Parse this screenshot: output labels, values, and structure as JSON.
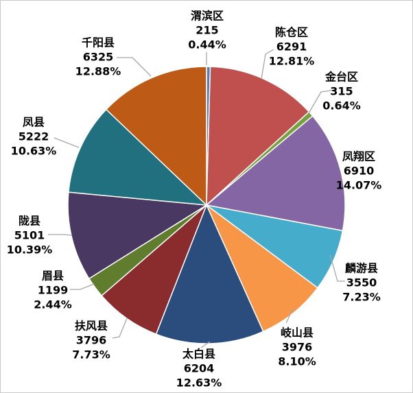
{
  "chart": {
    "background": "#FFFFFF",
    "frame_border_color": "#C9C9C9",
    "leader_line_color": "#A6A6A6",
    "slice_gap_color": "#FFFFFF",
    "label_text_color": "#000000"
  },
  "chart_data": {
    "type": "pie",
    "title": "",
    "legend_position": "none",
    "direction": "clockwise",
    "start_angle_deg": 0,
    "labels_layout": "outside-with-leader-lines",
    "slices": [
      {
        "label": "渭滨区",
        "value": 215,
        "percent": "0.44%",
        "color": "#4F81BD"
      },
      {
        "label": "陈仓区",
        "value": 6291,
        "percent": "12.81%",
        "color": "#C0504D"
      },
      {
        "label": "金台区",
        "value": 315,
        "percent": "0.64%",
        "color": "#76A13E"
      },
      {
        "label": "凤翔区",
        "value": 6910,
        "percent": "14.07%",
        "color": "#8466A5"
      },
      {
        "label": "麟游县",
        "value": 3550,
        "percent": "7.23%",
        "color": "#45ACCB"
      },
      {
        "label": "岐山县",
        "value": 3976,
        "percent": "8.10%",
        "color": "#F79646"
      },
      {
        "label": "太白县",
        "value": 6204,
        "percent": "12.63%",
        "color": "#2A4D7D"
      },
      {
        "label": "扶风县",
        "value": 3796,
        "percent": "7.73%",
        "color": "#8A2C2E"
      },
      {
        "label": "眉县",
        "value": 1199,
        "percent": "2.44%",
        "color": "#5F7D2D"
      },
      {
        "label": "陇县",
        "value": 5101,
        "percent": "10.39%",
        "color": "#483862"
      },
      {
        "label": "凤县",
        "value": 5222,
        "percent": "10.63%",
        "color": "#20707F"
      },
      {
        "label": "千阳县",
        "value": 6325,
        "percent": "12.88%",
        "color": "#BD5B16"
      }
    ]
  }
}
